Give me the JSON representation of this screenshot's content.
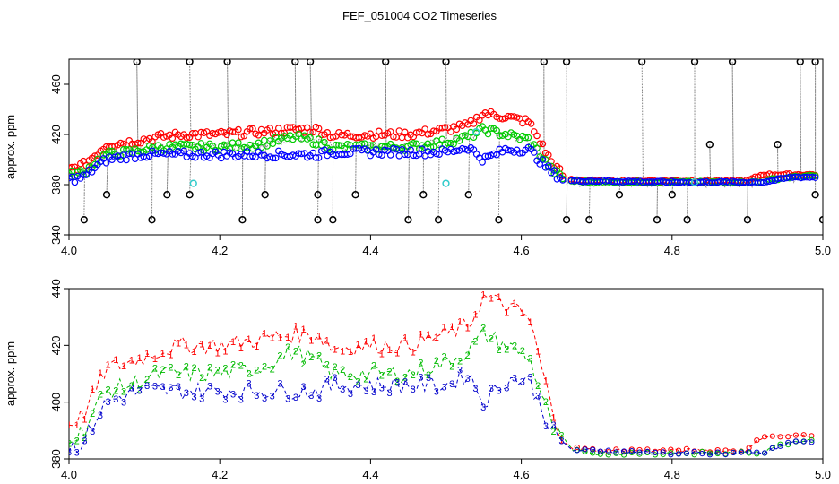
{
  "title": "FEF_051004  CO2 Timeseries",
  "chart_data": [
    {
      "type": "scatter",
      "panel": "top",
      "ylabel": "approx. ppm",
      "xlim": [
        4.0,
        5.0
      ],
      "ylim": [
        340,
        480
      ],
      "xticks": [
        4.0,
        4.2,
        4.4,
        4.6,
        4.8,
        5.0
      ],
      "xtick_labels": [
        "4.0",
        "4.2",
        "4.4",
        "4.6",
        "4.8",
        "5.0"
      ],
      "yticks": [
        340,
        380,
        420,
        460
      ],
      "ytick_labels": [
        "340",
        "380",
        "420",
        "460"
      ],
      "raw_trace": {
        "name": "raw",
        "color": "#888888",
        "style": "dotted"
      },
      "series": [
        {
          "name": "1",
          "color": "#ff0000",
          "marker": "circle"
        },
        {
          "name": "2",
          "color": "#00cc00",
          "marker": "circle"
        },
        {
          "name": "3",
          "color": "#0000ff",
          "marker": "circle"
        },
        {
          "name": "flagged",
          "color": "#000000",
          "marker": "circle",
          "x": [
            4.02,
            4.05,
            4.09,
            4.11,
            4.13,
            4.16,
            4.16,
            4.21,
            4.23,
            4.26,
            4.3,
            4.32,
            4.33,
            4.33,
            4.35,
            4.38,
            4.42,
            4.45,
            4.47,
            4.49,
            4.5,
            4.53,
            4.57,
            4.63,
            4.66,
            4.66,
            4.69,
            4.73,
            4.76,
            4.78,
            4.8,
            4.82,
            4.83,
            4.85,
            4.88,
            4.9,
            4.94,
            4.97,
            4.99,
            4.99,
            5.0
          ],
          "y": [
            352,
            372,
            478,
            352,
            372,
            372,
            478,
            478,
            352,
            372,
            478,
            478,
            372,
            352,
            352,
            372,
            478,
            352,
            372,
            352,
            478,
            372,
            352,
            478,
            478,
            352,
            352,
            372,
            478,
            352,
            372,
            352,
            478,
            412,
            478,
            352,
            412,
            478,
            478,
            372,
            352
          ]
        },
        {
          "name": "cyan",
          "color": "#33cccc",
          "marker": "circle",
          "x": [
            4.165,
            4.5,
            4.54,
            4.83
          ],
          "y": [
            381,
            381,
            422,
            382
          ]
        }
      ]
    },
    {
      "type": "scatter",
      "panel": "bottom",
      "ylabel": "approx. ppm",
      "xlim": [
        4.0,
        5.0
      ],
      "ylim": [
        380,
        440
      ],
      "xticks": [
        4.0,
        4.2,
        4.4,
        4.6,
        4.8,
        5.0
      ],
      "xtick_labels": [
        "4.0",
        "4.2",
        "4.4",
        "4.6",
        "4.8",
        "5.0"
      ],
      "yticks": [
        380,
        400,
        420,
        440
      ],
      "ytick_labels": [
        "380",
        "400",
        "420",
        "440"
      ],
      "series": [
        {
          "name": "1",
          "color": "#ff0000",
          "marker": "digit 1",
          "x": [
            4.0,
            4.02,
            4.035,
            4.05,
            4.08,
            4.1,
            4.12,
            4.15,
            4.2,
            4.25,
            4.3,
            4.33,
            4.35,
            4.4,
            4.45,
            4.5,
            4.53,
            4.55,
            4.58,
            4.61,
            4.64,
            4.66,
            4.7,
            4.8,
            4.9,
            4.92,
            4.93,
            4.96,
            4.985
          ],
          "y": [
            392,
            396,
            404,
            412,
            414,
            416,
            418,
            420,
            420,
            422,
            424,
            424,
            419,
            420,
            420,
            424,
            427,
            437,
            434,
            430,
            398,
            384,
            383,
            383,
            383,
            388,
            388,
            388,
            388
          ]
        },
        {
          "name": "2",
          "color": "#00bb00",
          "marker": "digit 2",
          "x": [
            4.0,
            4.02,
            4.035,
            4.05,
            4.08,
            4.1,
            4.12,
            4.15,
            4.2,
            4.25,
            4.3,
            4.33,
            4.35,
            4.4,
            4.45,
            4.5,
            4.53,
            4.55,
            4.58,
            4.61,
            4.64,
            4.66,
            4.7,
            4.8,
            4.9,
            4.92,
            4.93,
            4.96,
            4.985
          ],
          "y": [
            388,
            390,
            398,
            404,
            406,
            408,
            410,
            410,
            410,
            412,
            418,
            414,
            410,
            410,
            410,
            414,
            418,
            424,
            420,
            416,
            392,
            383,
            382,
            382,
            382,
            382,
            384,
            386,
            387
          ]
        },
        {
          "name": "3",
          "color": "#0000cc",
          "marker": "digit 3",
          "x": [
            4.0,
            4.02,
            4.035,
            4.05,
            4.08,
            4.1,
            4.12,
            4.15,
            4.2,
            4.25,
            4.3,
            4.33,
            4.35,
            4.4,
            4.45,
            4.5,
            4.53,
            4.55,
            4.58,
            4.61,
            4.64,
            4.66,
            4.7,
            4.8,
            4.9,
            4.92,
            4.93,
            4.96,
            4.985
          ],
          "y": [
            384,
            386,
            394,
            400,
            403,
            404,
            404,
            404,
            404,
            404,
            404,
            404,
            406,
            406,
            406,
            406,
            410,
            400,
            408,
            408,
            390,
            383,
            383,
            382,
            382,
            382,
            383,
            386,
            386
          ]
        }
      ]
    }
  ]
}
